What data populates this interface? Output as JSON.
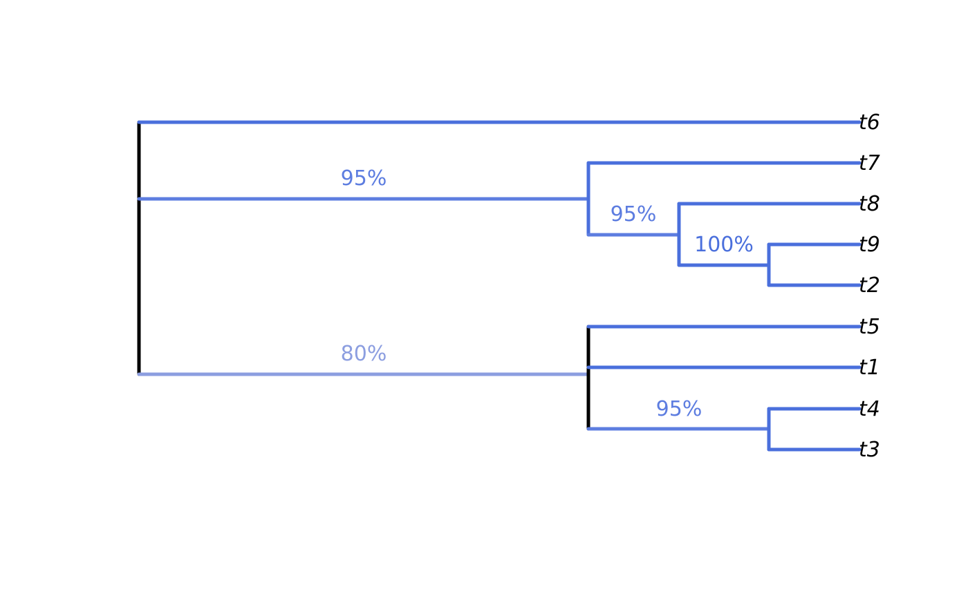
{
  "colors": {
    "strong_support": "#4a6fdc",
    "support_95": "#5d7de0",
    "support_80": "#8c9ee0",
    "unsupported": "#000000"
  },
  "tree": {
    "tips": [
      {
        "id": "t6",
        "label": "t6"
      },
      {
        "id": "t7",
        "label": "t7"
      },
      {
        "id": "t8",
        "label": "t8"
      },
      {
        "id": "t9",
        "label": "t9"
      },
      {
        "id": "t2",
        "label": "t2"
      },
      {
        "id": "t5",
        "label": "t5"
      },
      {
        "id": "t1",
        "label": "t1"
      },
      {
        "id": "t4",
        "label": "t4"
      },
      {
        "id": "t3",
        "label": "t3"
      }
    ],
    "supports": [
      {
        "clade": "t7,t8,t9,t2",
        "label": "95%",
        "color": "#5d7de0"
      },
      {
        "clade": "t8,t9,t2",
        "label": "95%",
        "color": "#5d7de0"
      },
      {
        "clade": "t9,t2",
        "label": "100%",
        "color": "#4a6fdc"
      },
      {
        "clade": "t5,t1,t4,t3",
        "label": "80%",
        "color": "#8c9ee0"
      },
      {
        "clade": "t4,t3",
        "label": "95%",
        "color": "#5d7de0"
      }
    ]
  }
}
